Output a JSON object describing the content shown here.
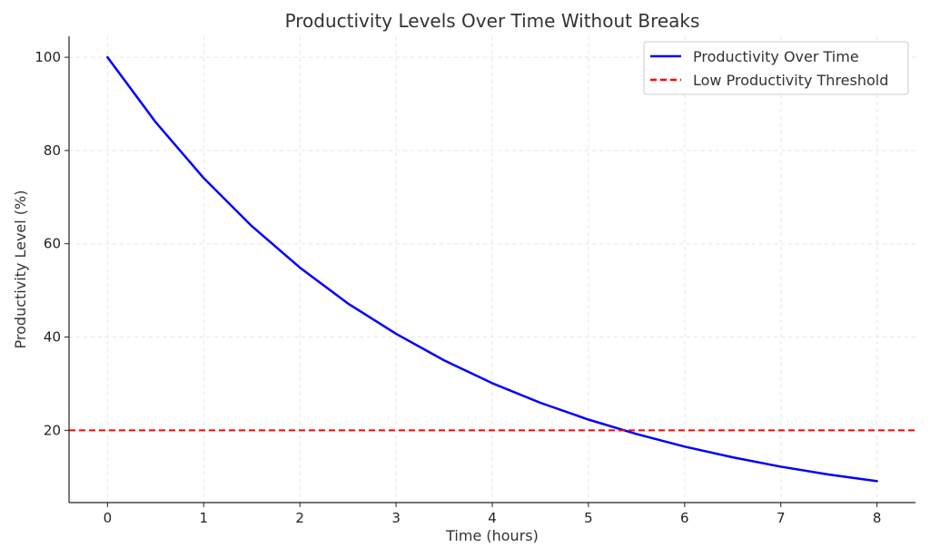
{
  "chart_data": {
    "type": "line",
    "title": "Productivity Levels Over Time Without Breaks",
    "xlabel": "Time (hours)",
    "ylabel": "Productivity Level (%)",
    "xlim": [
      -0.4,
      8.4
    ],
    "ylim": [
      4.5,
      104.5
    ],
    "xticks": [
      0,
      1,
      2,
      3,
      4,
      5,
      6,
      7,
      8
    ],
    "yticks": [
      20,
      40,
      60,
      80,
      100
    ],
    "grid": true,
    "legend_position": "top-right",
    "series": [
      {
        "name": "Productivity Over Time",
        "color": "#0000ff",
        "style": "solid",
        "x": [
          0,
          0.5,
          1,
          1.5,
          2,
          2.5,
          3,
          3.5,
          4,
          4.5,
          5,
          5.5,
          6,
          6.5,
          7,
          7.5,
          8
        ],
        "y": [
          100,
          86.1,
          74.1,
          63.8,
          54.9,
          47.2,
          40.7,
          35.0,
          30.1,
          25.9,
          22.3,
          19.2,
          16.5,
          14.2,
          12.2,
          10.5,
          9.1
        ]
      },
      {
        "name": "Low Productivity Threshold",
        "color": "#ff0000",
        "style": "dashed",
        "y_constant": 20
      }
    ]
  }
}
